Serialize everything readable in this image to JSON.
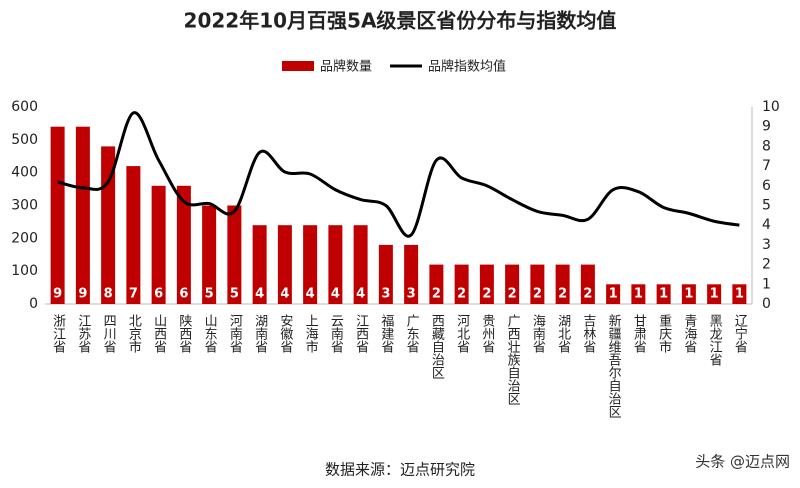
{
  "chart_data": {
    "type": "bar+line",
    "title": "2022年10月百强5A级景区省份分布与指数均值",
    "categories": [
      "浙江省",
      "江苏省",
      "四川省",
      "北京市",
      "山西省",
      "陕西省",
      "山东省",
      "河南省",
      "湖南省",
      "安徽省",
      "上海市",
      "云南省",
      "江西省",
      "福建省",
      "广东省",
      "西藏自治区",
      "河北省",
      "贵州省",
      "广西壮族自治区",
      "海南省",
      "湖北省",
      "吉林省",
      "新疆维吾尔自治区",
      "甘肃省",
      "重庆市",
      "青海省",
      "黑龙江省",
      "辽宁省"
    ],
    "series": [
      {
        "name": "品牌数量",
        "type": "bar",
        "axis": "y2",
        "color": "#c00000",
        "values": [
          9,
          9,
          8,
          7,
          6,
          6,
          5,
          5,
          4,
          4,
          4,
          4,
          4,
          3,
          3,
          2,
          2,
          2,
          2,
          2,
          2,
          2,
          1,
          1,
          1,
          1,
          1,
          1
        ]
      },
      {
        "name": "品牌指数均值",
        "type": "line",
        "axis": "y2",
        "color": "#000000",
        "values": [
          6.2,
          5.9,
          6.2,
          9.7,
          7.3,
          5.2,
          5.1,
          4.7,
          7.7,
          6.7,
          6.6,
          5.8,
          5.3,
          5.0,
          3.5,
          7.3,
          6.4,
          6.0,
          5.3,
          4.7,
          4.5,
          4.3,
          5.8,
          5.7,
          4.9,
          4.6,
          4.2,
          4.0
        ]
      }
    ],
    "ylim": [
      0,
      600
    ],
    "yticks": [
      0,
      100,
      200,
      300,
      400,
      500,
      600
    ],
    "y2lim": [
      0,
      10
    ],
    "y2ticks": [
      0,
      1,
      2,
      3,
      4,
      5,
      6,
      7,
      8,
      9,
      10
    ],
    "legend": "top",
    "grid": false,
    "source": "数据来源：迈点研究院",
    "watermark": "头条 @迈点网"
  }
}
